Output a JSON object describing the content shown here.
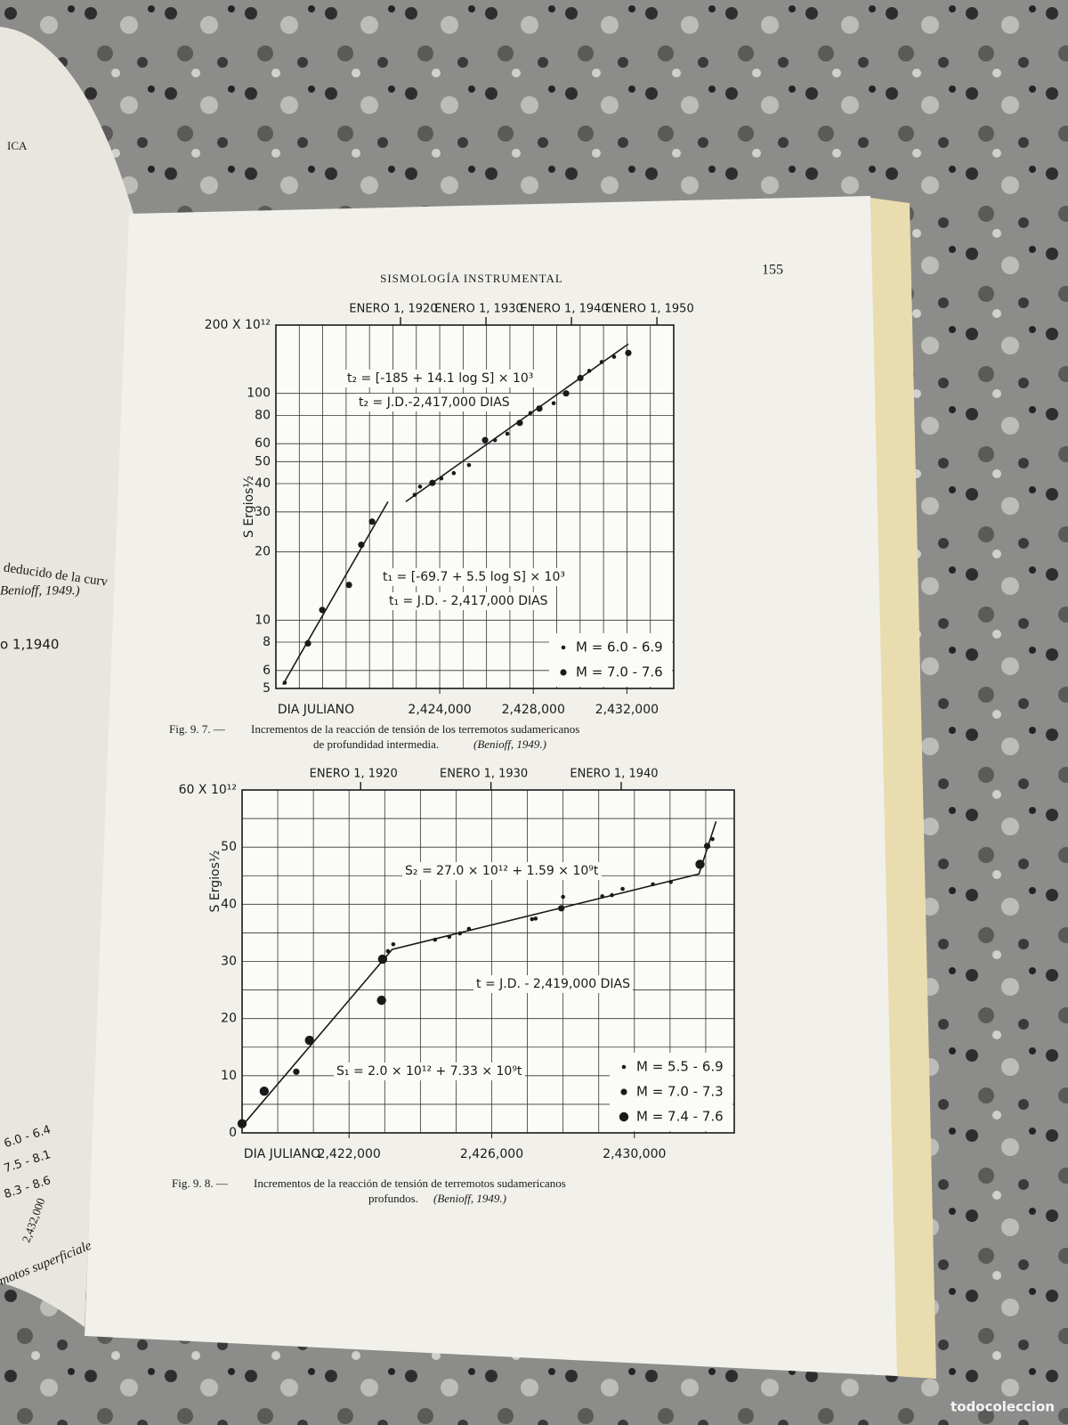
{
  "header": {
    "title": "SISMOLOGÍA INSTRUMENTAL",
    "page_number": "155"
  },
  "left_page": {
    "fragments": [
      "ICA",
      "deducido de la curv",
      "Benioff, 1949.)",
      "o 1,1940",
      "6.0 - 6.4",
      "7.5 - 8.1",
      "8.3 - 8.6",
      "2,432,000",
      "motos superficiale"
    ]
  },
  "captions": [
    {
      "label": "Fig. 9. 7. —",
      "text": "Incrementos de la reacción de tensión de los terremotos sudamericanos",
      "text2": "de profundidad intermedia.",
      "source": "(Benioff, 1949.)"
    },
    {
      "label": "Fig. 9. 8. —",
      "text": "Incrementos de la reacción de tensión de terremotos sudamericanos",
      "text2": "profundos.",
      "source": "(Benioff, 1949.)"
    }
  ],
  "watermark": "todocoleccion",
  "chart_data": [
    {
      "type": "scatter",
      "log_y": true,
      "grid": true,
      "legend": "lower right",
      "x_label": "DIA JULIANO",
      "y_label": "S Ergios½",
      "xlim": [
        2417000,
        2434000
      ],
      "ylim": [
        5,
        200
      ],
      "xticks": [
        {
          "value": 2424000,
          "label": "2,424,000"
        },
        {
          "value": 2428000,
          "label": "2,428,000"
        },
        {
          "value": 2432000,
          "label": "2,432,000"
        }
      ],
      "x2ticks": [
        {
          "value": 2422325,
          "label": "ENERO 1, 1920"
        },
        {
          "value": 2425978,
          "label": "ENERO 1, 1930"
        },
        {
          "value": 2429630,
          "label": "ENERO 1, 1940"
        },
        {
          "value": 2433283,
          "label": "ENERO 1, 1950"
        }
      ],
      "yticks": [
        5,
        6,
        8,
        10,
        20,
        30,
        40,
        50,
        60,
        80,
        100,
        {
          "value": 200,
          "label": "200 X 10¹²"
        }
      ],
      "xgrid": [
        2418000,
        2419000,
        2420000,
        2421000,
        2422000,
        2423000,
        2424000,
        2425000,
        2426000,
        2427000,
        2428000,
        2429000,
        2430000,
        2431000,
        2432000,
        2433000
      ],
      "series": [
        {
          "name": "M = 6.0 - 6.9",
          "color": "#1a1a1a",
          "x": [
            2417380,
            2422930,
            2423160,
            2424070,
            2424600,
            2425250,
            2426360,
            2426890,
            2427880,
            2428870,
            2430390,
            2430920,
            2431450
          ],
          "values": [
            5.3,
            35.7,
            38.8,
            42.2,
            44.5,
            48.3,
            62.2,
            66.4,
            81.9,
            90.5,
            125.6,
            137.5,
            145
          ]
        },
        {
          "name": "M = 7.0 - 7.6",
          "color": "#1a1a1a",
          "x": [
            2418370,
            2418980,
            2420120,
            2420650,
            2421110,
            2423690,
            2425940,
            2427420,
            2428260,
            2429400,
            2430010,
            2432060
          ],
          "values": [
            7.9,
            11.1,
            14.3,
            21.5,
            27.2,
            40.3,
            62.2,
            74.1,
            85.7,
            100,
            116.8,
            150.7
          ]
        }
      ],
      "lines": [
        {
          "x": [
            2417300,
            2421790
          ],
          "y": [
            5.2,
            33.3
          ]
        },
        {
          "x": [
            2422550,
            2432060
          ],
          "y": [
            33.3,
            165
          ]
        }
      ],
      "annotations": [
        "t₂ = [-185 + 14.1 log S] × 10³",
        "t₂ = J.D.-2,417,000 DIAS",
        "t₁ = [-69.7 + 5.5 log S] × 10³",
        "t₁ = J.D. - 2,417,000 DIAS"
      ]
    },
    {
      "type": "scatter",
      "log_y": false,
      "grid": true,
      "legend": "lower right",
      "x_label": "DIA JULIANO",
      "y_label": "S Ergios½",
      "xlim": [
        2419000,
        2432800
      ],
      "ylim": [
        0,
        60
      ],
      "xticks": [
        {
          "value": 2422000,
          "label": "2,422,000"
        },
        {
          "value": 2426000,
          "label": "2,426,000"
        },
        {
          "value": 2430000,
          "label": "2,430,000"
        }
      ],
      "x2ticks": [
        {
          "value": 2422325,
          "label": "ENERO 1, 1920"
        },
        {
          "value": 2425978,
          "label": "ENERO 1, 1930"
        },
        {
          "value": 2429630,
          "label": "ENERO 1, 1940"
        }
      ],
      "yticks": [
        0,
        10,
        20,
        30,
        40,
        50,
        {
          "value": 60,
          "label": "60 X 10¹²"
        }
      ],
      "yminor": [
        5,
        15,
        25,
        35,
        45,
        55
      ],
      "xgrid": [
        2420000,
        2421000,
        2422000,
        2423000,
        2424000,
        2425000,
        2426000,
        2427000,
        2428000,
        2429000,
        2430000,
        2431000,
        2432000
      ],
      "series": [
        {
          "name": "M = 5.5 - 6.9",
          "color": "#1a1a1a",
          "x": [
            2423090,
            2423240,
            2424410,
            2424810,
            2425110,
            2425360,
            2427130,
            2427230,
            2428000,
            2429100,
            2429370,
            2429670,
            2430520,
            2431020,
            2432190
          ],
          "values": [
            31.8,
            33.0,
            33.8,
            34.3,
            34.9,
            35.7,
            37.4,
            37.5,
            41.3,
            41.4,
            41.6,
            42.7,
            43.5,
            43.9,
            51.4
          ]
        },
        {
          "name": "M = 7.0 - 7.3",
          "color": "#1a1a1a",
          "x": [
            2420520,
            2427950,
            2432040
          ],
          "values": [
            10.7,
            39.3,
            50.2
          ]
        },
        {
          "name": "M = 7.4 - 7.6",
          "color": "#1a1a1a",
          "x": [
            2419000,
            2419620,
            2420890,
            2422910,
            2422940,
            2431840
          ],
          "values": [
            1.6,
            7.3,
            16.2,
            23.2,
            30.4,
            47.0
          ]
        }
      ],
      "lines": [
        {
          "x": [
            2419000,
            2423210,
            2431810,
            2432290
          ],
          "y": [
            1.2,
            32.1,
            45.3,
            54.5
          ]
        }
      ],
      "annotations": [
        "S₂ = 27.0 × 10¹² + 1.59 × 10⁹t",
        "t = J.D. - 2,419,000 DIAS",
        "S₁ = 2.0 × 10¹² + 7.33 × 10⁹t"
      ]
    }
  ]
}
